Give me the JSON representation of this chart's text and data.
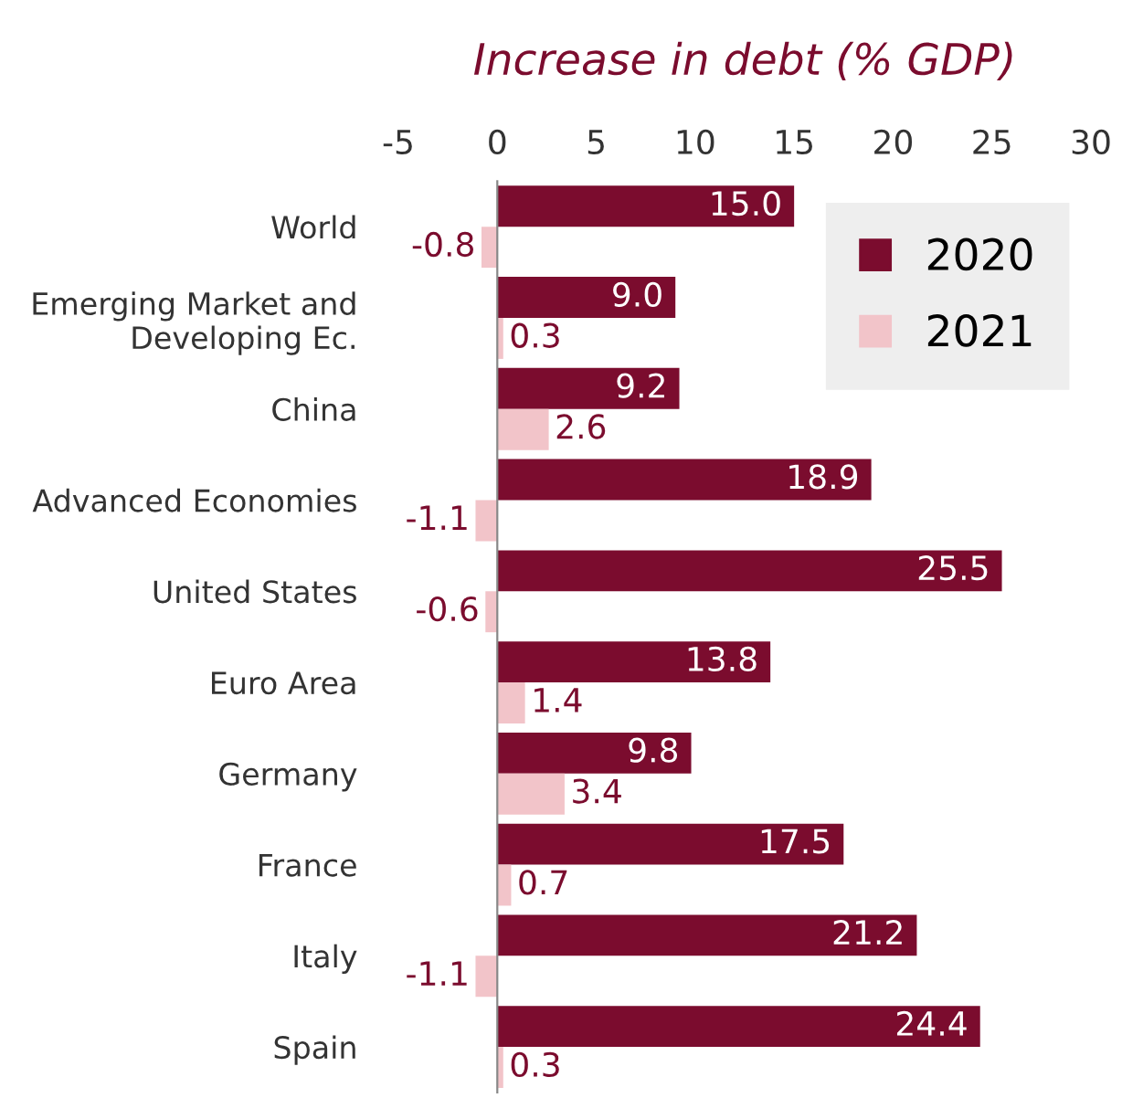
{
  "chart_data": {
    "type": "bar",
    "orientation": "horizontal",
    "title": "Increase in debt (% GDP)",
    "categories": [
      "World",
      "Emerging Market and\nDeveloping Ec.",
      "China",
      "Advanced Economies",
      "United States",
      "Euro Area",
      "Germany",
      "France",
      "Italy",
      "Spain"
    ],
    "series": [
      {
        "name": "2020",
        "color": "#7b0c2e",
        "values": [
          15.0,
          9.0,
          9.2,
          18.9,
          25.5,
          13.8,
          9.8,
          17.5,
          21.2,
          24.4
        ],
        "value_labels": [
          "15.0",
          "9.0",
          "9.2",
          "18.9",
          "25.5",
          "13.8",
          "9.8",
          "17.5",
          "21.2",
          "24.4"
        ]
      },
      {
        "name": "2021",
        "color": "#f2c4c9",
        "values": [
          -0.8,
          0.3,
          2.6,
          -1.1,
          -0.6,
          1.4,
          3.4,
          0.7,
          -1.1,
          0.3
        ],
        "value_labels": [
          "-0.8",
          "0.3",
          "2.6",
          "-1.1",
          "-0.6",
          "1.4",
          "3.4",
          "0.7",
          "-1.1",
          "0.3"
        ]
      }
    ],
    "xlim": [
      -5,
      30
    ],
    "xticks": [
      -5,
      0,
      5,
      10,
      15,
      20,
      25,
      30
    ],
    "legend": "top right"
  }
}
